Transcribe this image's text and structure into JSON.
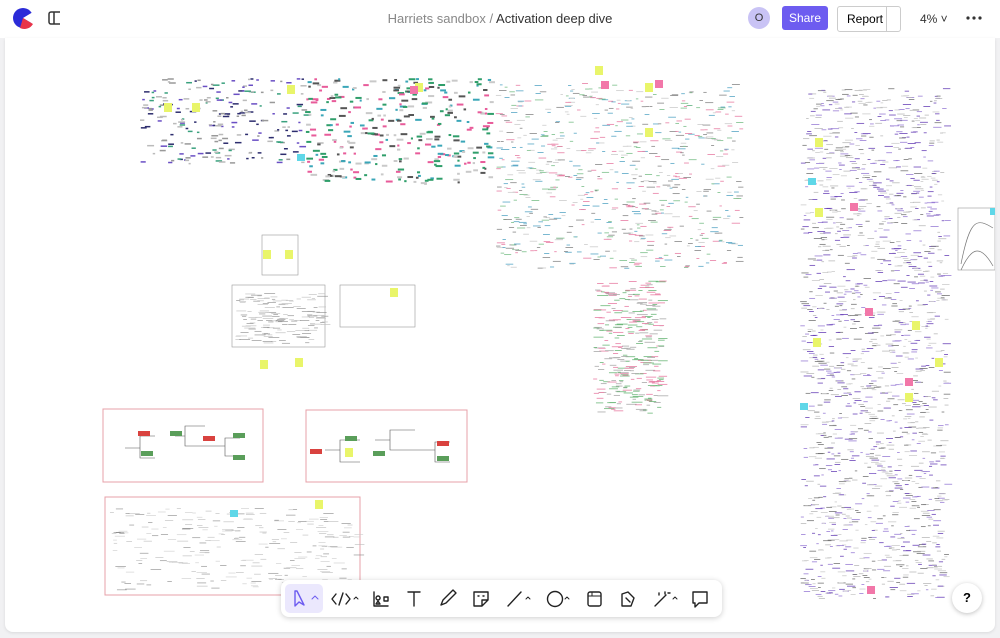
{
  "header": {
    "workspace": "Harriets sandbox",
    "separator": "/",
    "page": "Activation deep dive",
    "avatar": "O",
    "share": "Share",
    "report": "Report",
    "zoom": "4%"
  },
  "help": "?"
}
